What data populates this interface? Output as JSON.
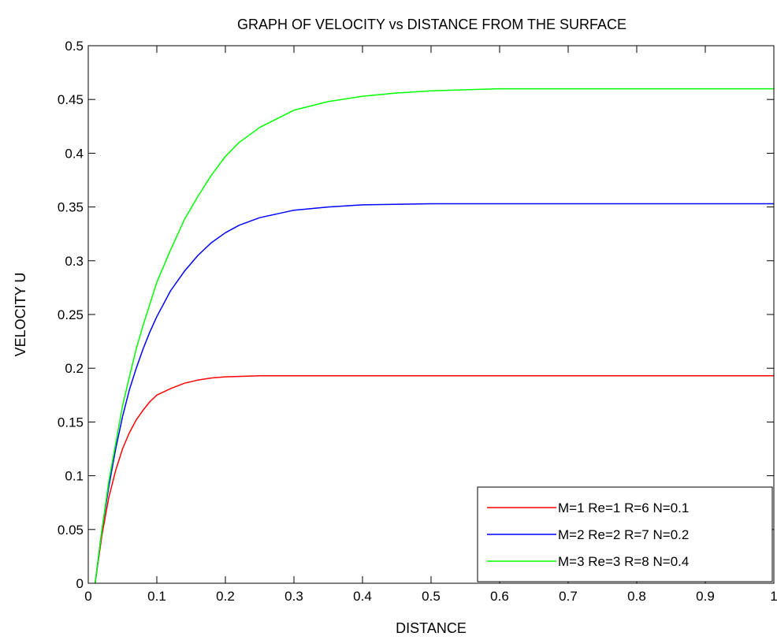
{
  "chart_data": {
    "type": "line",
    "title": "GRAPH OF VELOCITY vs DISTANCE FROM THE SURFACE",
    "xlabel": "DISTANCE",
    "ylabel": "VELOCITY U",
    "xlim": [
      0,
      1
    ],
    "ylim": [
      0,
      0.5
    ],
    "xticks": [
      "0",
      "0.1",
      "0.2",
      "0.3",
      "0.4",
      "0.5",
      "0.6",
      "0.7",
      "0.8",
      "0.9",
      "1"
    ],
    "yticks": [
      "0",
      "0.05",
      "0.1",
      "0.15",
      "0.2",
      "0.25",
      "0.3",
      "0.35",
      "0.4",
      "0.45",
      "0.5"
    ],
    "grid": false,
    "legend_position": "bottom-right",
    "series": [
      {
        "name": "M=1 Re=1 R=6 N=0.1",
        "color": "#ff0000",
        "x": [
          0.01,
          0.02,
          0.03,
          0.04,
          0.05,
          0.06,
          0.07,
          0.08,
          0.09,
          0.1,
          0.12,
          0.14,
          0.16,
          0.18,
          0.2,
          0.25,
          0.3,
          0.4,
          0.5,
          0.6,
          0.7,
          0.8,
          0.9,
          1.0
        ],
        "y": [
          0.0,
          0.045,
          0.08,
          0.105,
          0.125,
          0.14,
          0.152,
          0.161,
          0.169,
          0.175,
          0.181,
          0.186,
          0.189,
          0.191,
          0.192,
          0.193,
          0.193,
          0.193,
          0.193,
          0.193,
          0.193,
          0.193,
          0.193,
          0.193
        ]
      },
      {
        "name": "M=2 Re=2 R=7 N=0.2",
        "color": "#0000ff",
        "x": [
          0.01,
          0.02,
          0.03,
          0.04,
          0.05,
          0.06,
          0.07,
          0.08,
          0.09,
          0.1,
          0.12,
          0.14,
          0.16,
          0.18,
          0.2,
          0.22,
          0.25,
          0.3,
          0.35,
          0.4,
          0.5,
          0.6,
          0.7,
          0.8,
          0.9,
          1.0
        ],
        "y": [
          0.0,
          0.05,
          0.09,
          0.125,
          0.155,
          0.18,
          0.2,
          0.218,
          0.234,
          0.248,
          0.272,
          0.29,
          0.305,
          0.317,
          0.326,
          0.333,
          0.34,
          0.347,
          0.35,
          0.352,
          0.353,
          0.353,
          0.353,
          0.353,
          0.353,
          0.353
        ]
      },
      {
        "name": "M=3 Re=3 R=8 N=0.4",
        "color": "#00ff00",
        "x": [
          0.01,
          0.02,
          0.03,
          0.04,
          0.05,
          0.06,
          0.07,
          0.08,
          0.09,
          0.1,
          0.12,
          0.14,
          0.16,
          0.18,
          0.2,
          0.22,
          0.25,
          0.3,
          0.35,
          0.4,
          0.45,
          0.5,
          0.55,
          0.6,
          0.7,
          0.8,
          0.9,
          1.0
        ],
        "y": [
          0.0,
          0.05,
          0.095,
          0.13,
          0.165,
          0.192,
          0.218,
          0.24,
          0.26,
          0.28,
          0.31,
          0.338,
          0.36,
          0.38,
          0.397,
          0.41,
          0.424,
          0.44,
          0.448,
          0.453,
          0.456,
          0.458,
          0.459,
          0.46,
          0.46,
          0.46,
          0.46,
          0.46
        ]
      }
    ]
  }
}
